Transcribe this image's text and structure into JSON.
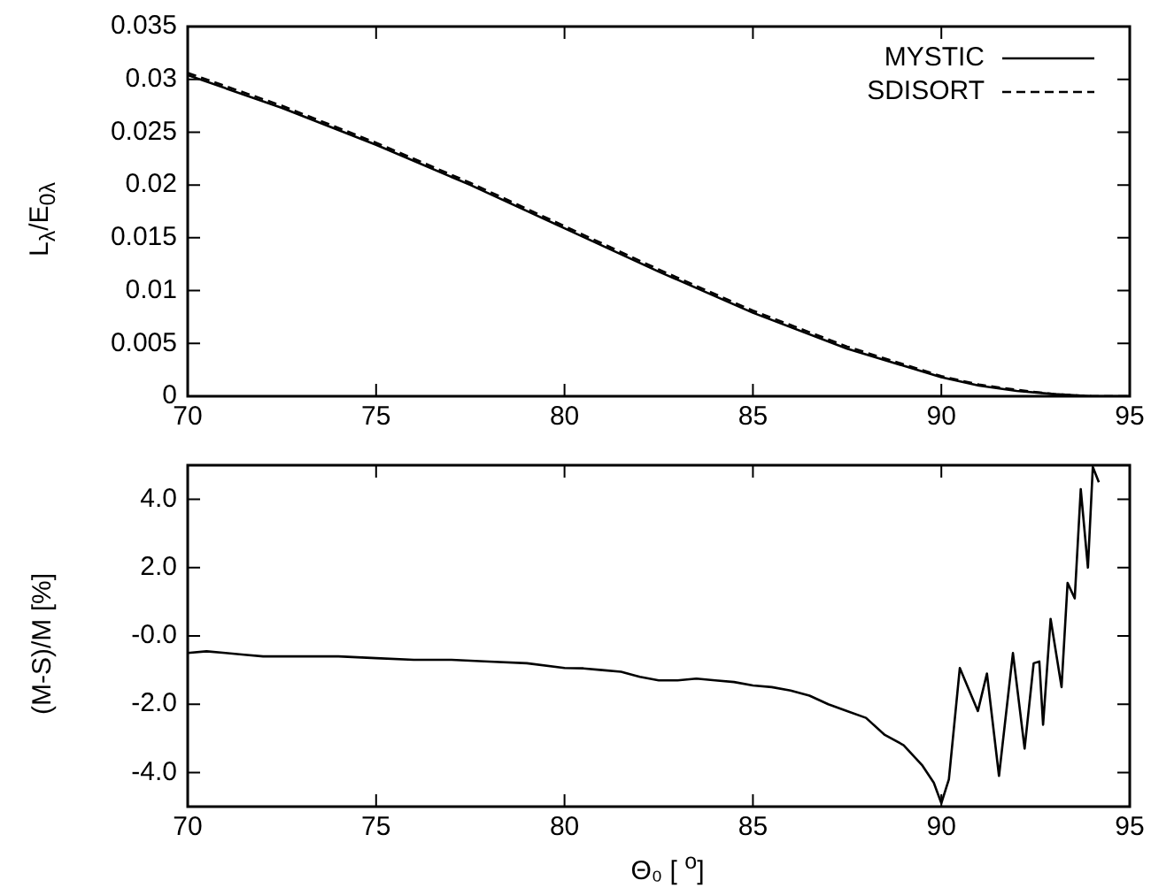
{
  "chart_data": [
    {
      "type": "line",
      "ylabel": "L$_{λ}$/E$_{0λ}$",
      "legend": "top right",
      "xlim": [
        70,
        95
      ],
      "xticks": [
        70,
        75,
        80,
        85,
        90,
        95
      ],
      "ylim": [
        0,
        0.035
      ],
      "yticks": [
        0,
        0.005,
        0.01,
        0.015,
        0.02,
        0.025,
        0.03,
        0.035
      ],
      "grid": false,
      "x": [
        70,
        72.5,
        75,
        77.5,
        80,
        82.5,
        85,
        87.5,
        90,
        91,
        92,
        93,
        93.5,
        94,
        95
      ],
      "series": [
        {
          "name": "MYSTIC",
          "color": "#000000",
          "line_style": "solid",
          "values": [
            0.0304,
            0.0273,
            0.0238,
            0.02,
            0.0159,
            0.0118,
            0.0079,
            0.0045,
            0.0018,
            0.001,
            0.0005,
            0.0002,
            0.0001,
            0,
            0
          ]
        },
        {
          "name": "SDISORT",
          "color": "#000000",
          "line_style": "dashed",
          "values": [
            0.0306,
            0.0275,
            0.024,
            0.0202,
            0.0161,
            0.012,
            0.0081,
            0.0047,
            0.0019,
            0.0011,
            0.0006,
            0.0002,
            0.0001,
            0,
            0
          ]
        }
      ]
    },
    {
      "type": "line",
      "xlabel": "Θ₀ [ $^{o}$]",
      "ylabel": "(M-S)/M [%]",
      "xlim": [
        70,
        95
      ],
      "xticks": [
        70,
        75,
        80,
        85,
        90,
        95
      ],
      "ylim": [
        -5,
        5
      ],
      "yticks": [
        {
          "value": -4,
          "label": "-4.0"
        },
        {
          "value": -2,
          "label": "-2.0"
        },
        {
          "value": 0,
          "label": "-0.0"
        },
        {
          "value": 2,
          "label": "2.0"
        },
        {
          "value": 4,
          "label": "4.0"
        }
      ],
      "grid": false,
      "legend": false,
      "x": [
        70,
        70.5,
        71,
        71.5,
        72,
        73,
        74,
        75,
        76,
        77,
        78,
        79,
        80,
        80.5,
        81,
        81.5,
        82,
        82.5,
        83,
        83.5,
        84,
        84.5,
        85,
        85.5,
        86,
        86.5,
        87,
        87.5,
        88,
        88.5,
        89,
        89.5,
        89.8,
        90,
        90.2,
        90.49,
        90.97,
        91.21,
        91.53,
        91.9,
        92.21,
        92.45,
        92.6,
        92.7,
        92.9,
        93.19,
        93.35,
        93.54,
        93.7,
        93.89,
        94.02,
        94.18
      ],
      "series": [
        {
          "color": "#000000",
          "line_style": "solid",
          "values": [
            -0.5,
            -0.45,
            -0.5,
            -0.55,
            -0.6,
            -0.6,
            -0.6,
            -0.65,
            -0.7,
            -0.7,
            -0.75,
            -0.8,
            -0.94,
            -0.95,
            -1.0,
            -1.05,
            -1.2,
            -1.3,
            -1.3,
            -1.25,
            -1.3,
            -1.35,
            -1.45,
            -1.5,
            -1.6,
            -1.75,
            -2.0,
            -2.2,
            -2.4,
            -2.9,
            -3.2,
            -3.8,
            -4.3,
            -4.9,
            -4.2,
            -0.94,
            -2.2,
            -1.1,
            -4.1,
            -0.5,
            -3.3,
            -0.8,
            -0.75,
            -2.6,
            0.5,
            -1.5,
            1.55,
            1.1,
            4.3,
            2.0,
            4.95,
            4.5
          ]
        }
      ]
    }
  ]
}
